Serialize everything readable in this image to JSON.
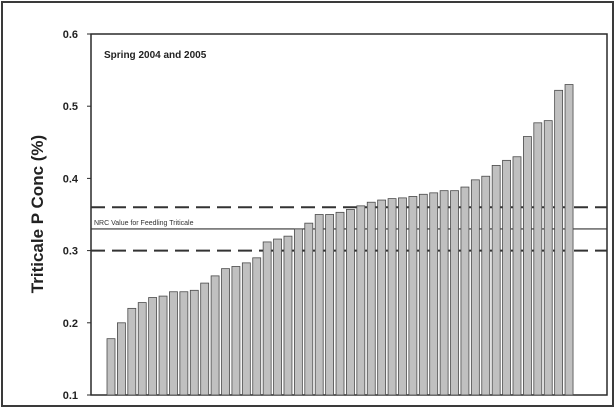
{
  "chart_data": {
    "type": "bar",
    "title": "Spring 2004 and 2005",
    "xlabel": "",
    "ylabel": "Triticale P Conc (%)",
    "ylim": [
      0.1,
      0.6
    ],
    "yticks": [
      "0.1",
      "0.2",
      "0.3",
      "0.4",
      "0.5",
      "0.6"
    ],
    "grid": false,
    "values": [
      0.178,
      0.2,
      0.22,
      0.228,
      0.235,
      0.237,
      0.243,
      0.243,
      0.245,
      0.255,
      0.265,
      0.275,
      0.278,
      0.283,
      0.29,
      0.312,
      0.316,
      0.32,
      0.33,
      0.338,
      0.35,
      0.35,
      0.353,
      0.357,
      0.362,
      0.367,
      0.37,
      0.372,
      0.373,
      0.375,
      0.378,
      0.38,
      0.383,
      0.383,
      0.388,
      0.398,
      0.403,
      0.418,
      0.425,
      0.43,
      0.458,
      0.477,
      0.48,
      0.522,
      0.53
    ],
    "bar_color": "#c0c0c0",
    "reference_lines": [
      {
        "value": 0.33,
        "style": "solid",
        "label": "NRC Value for Feedling Triticale"
      },
      {
        "value": 0.36,
        "style": "dashed",
        "label": ""
      },
      {
        "value": 0.3,
        "style": "dashed",
        "label": ""
      }
    ]
  }
}
